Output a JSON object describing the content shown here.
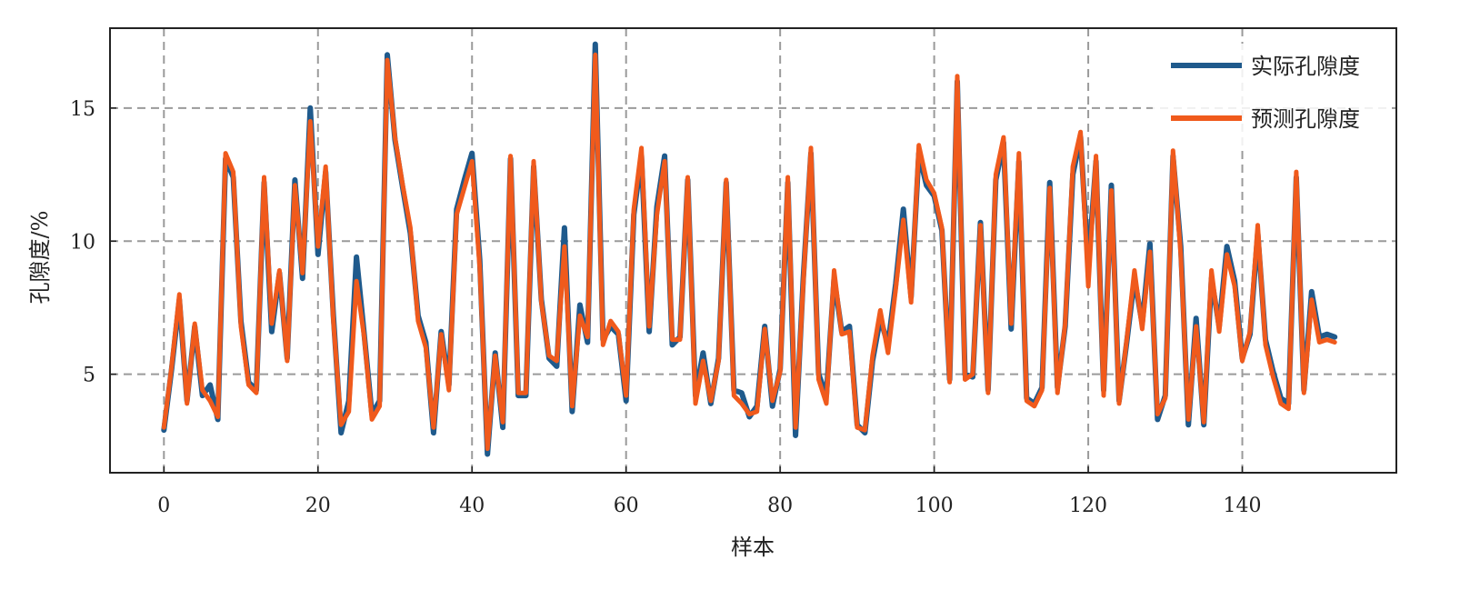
{
  "chart_data": {
    "type": "line",
    "title": "",
    "xlabel": "样本",
    "ylabel": "孔隙度/%",
    "xlim": [
      -7,
      160
    ],
    "ylim": [
      1.3,
      18
    ],
    "xticks": [
      0,
      20,
      40,
      60,
      80,
      100,
      120,
      140
    ],
    "yticks": [
      5,
      10,
      15
    ],
    "grid": true,
    "legend_position": "top-right",
    "series": [
      {
        "name": "实际孔隙度",
        "color": "#1f5a8c",
        "values": [
          2.9,
          5.2,
          7.8,
          4.0,
          6.8,
          4.2,
          4.6,
          3.3,
          13.1,
          12.4,
          7.0,
          4.7,
          4.4,
          12.2,
          6.6,
          8.8,
          5.6,
          12.3,
          8.6,
          15.0,
          9.5,
          12.6,
          7.2,
          2.8,
          4.0,
          9.4,
          6.5,
          3.5,
          4.0,
          17.0,
          13.8,
          12.0,
          10.3,
          7.2,
          6.2,
          2.8,
          6.6,
          4.6,
          11.2,
          12.3,
          13.3,
          9.3,
          2.0,
          5.8,
          3.0,
          13.1,
          4.2,
          4.2,
          12.8,
          7.8,
          5.6,
          5.3,
          10.5,
          3.6,
          7.6,
          6.2,
          17.4,
          6.3,
          6.8,
          6.5,
          4.0,
          11.0,
          13.2,
          6.6,
          11.3,
          13.2,
          6.1,
          6.4,
          12.3,
          4.2,
          5.8,
          3.9,
          5.6,
          12.2,
          4.4,
          4.3,
          3.4,
          3.8,
          6.8,
          3.8,
          5.2,
          12.2,
          2.7,
          8.6,
          13.3,
          5.0,
          4.2,
          8.6,
          6.6,
          6.8,
          3.1,
          2.8,
          5.5,
          7.1,
          6.1,
          8.4,
          11.2,
          7.9,
          13.3,
          12.1,
          11.7,
          10.4,
          4.8,
          16.0,
          5.0,
          4.9,
          10.7,
          4.4,
          12.3,
          13.7,
          6.7,
          13.0,
          4.1,
          3.9,
          4.5,
          12.2,
          4.5,
          6.8,
          12.5,
          13.9,
          9.0,
          13.0,
          4.4,
          12.1,
          4.0,
          6.2,
          8.6,
          6.9,
          9.9,
          3.3,
          4.2,
          13.2,
          9.8,
          3.1,
          7.1,
          3.1,
          8.6,
          6.8,
          9.8,
          8.5,
          5.6,
          6.5,
          10.3,
          6.3,
          5.1,
          4.1,
          3.9,
          12.4,
          4.4,
          8.1,
          6.4,
          6.5,
          6.4
        ]
      },
      {
        "name": "预测孔隙度",
        "color": "#f05a1c",
        "values": [
          3.0,
          5.3,
          8.0,
          3.9,
          6.9,
          4.4,
          4.0,
          3.4,
          13.3,
          12.6,
          6.8,
          4.6,
          4.3,
          12.4,
          6.9,
          8.9,
          5.5,
          12.1,
          8.8,
          14.5,
          9.8,
          12.8,
          7.0,
          3.1,
          3.6,
          8.5,
          6.4,
          3.3,
          3.8,
          16.8,
          13.9,
          12.1,
          10.5,
          7.0,
          6.0,
          3.0,
          6.5,
          4.4,
          11.0,
          12.0,
          13.0,
          9.0,
          2.2,
          5.7,
          3.2,
          13.2,
          4.3,
          4.3,
          13.0,
          7.7,
          5.7,
          5.5,
          9.8,
          3.8,
          7.2,
          6.4,
          17.0,
          6.1,
          7.0,
          6.6,
          4.2,
          11.2,
          13.5,
          6.8,
          11.0,
          13.0,
          6.3,
          6.3,
          12.4,
          3.9,
          5.5,
          4.0,
          5.5,
          12.3,
          4.2,
          3.9,
          3.5,
          3.6,
          6.7,
          4.0,
          5.1,
          12.4,
          3.0,
          8.4,
          13.5,
          4.8,
          3.9,
          8.9,
          6.5,
          6.6,
          3.0,
          2.9,
          5.7,
          7.4,
          5.8,
          8.2,
          10.8,
          7.7,
          13.6,
          12.3,
          11.8,
          10.5,
          4.7,
          16.2,
          4.8,
          5.0,
          10.6,
          4.3,
          12.5,
          13.9,
          6.9,
          13.3,
          4.0,
          3.8,
          4.4,
          12.0,
          4.3,
          6.9,
          12.8,
          14.1,
          8.3,
          13.2,
          4.2,
          11.9,
          3.9,
          6.3,
          8.9,
          6.7,
          9.6,
          3.5,
          4.1,
          13.4,
          9.5,
          3.3,
          6.8,
          3.2,
          8.9,
          6.6,
          9.5,
          8.3,
          5.5,
          6.6,
          10.6,
          6.1,
          4.9,
          3.9,
          3.7,
          12.6,
          4.3,
          7.8,
          6.2,
          6.3,
          6.2
        ]
      }
    ]
  }
}
